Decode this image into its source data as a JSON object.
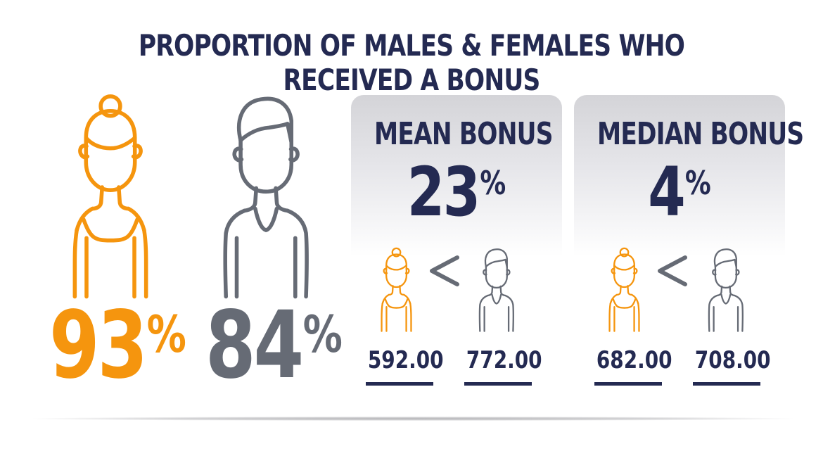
{
  "title": "PROPORTION OF MALES & FEMALES WHO RECEIVED A BONUS",
  "colors": {
    "female": "#f5950e",
    "male": "#666b75",
    "navy": "#242a52"
  },
  "icons": {
    "female": "female-person-icon",
    "male": "male-person-icon",
    "comparison": "less-than-icon"
  },
  "female_proportion": {
    "value": "93",
    "unit": "%"
  },
  "male_proportion": {
    "value": "84",
    "unit": "%"
  },
  "mean_bonus": {
    "label": "MEAN BONUS",
    "value": "23",
    "unit": "%",
    "female_value": "592.00",
    "male_value": "772.00"
  },
  "median_bonus": {
    "label": "MEDIAN BONUS",
    "value": "4",
    "unit": "%",
    "female_value": "682.00",
    "male_value": "708.00"
  }
}
